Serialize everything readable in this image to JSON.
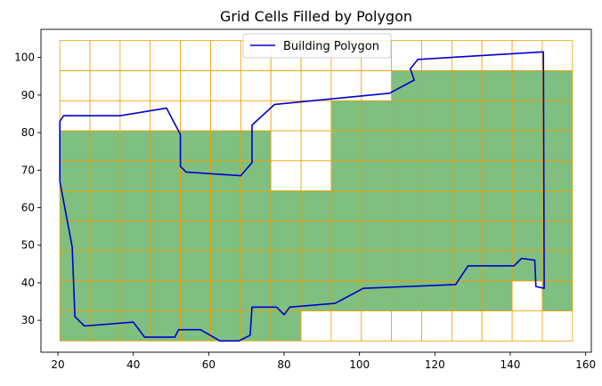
{
  "chart_data": {
    "type": "grid-polygon",
    "title": "Grid Cells Filled by Polygon",
    "xlim": [
      15.5,
      161.5
    ],
    "ylim": [
      21.5,
      107.5
    ],
    "xticks": [
      20,
      40,
      60,
      80,
      100,
      120,
      140,
      160
    ],
    "yticks": [
      30,
      40,
      50,
      60,
      70,
      80,
      90,
      100
    ],
    "grid_x_edges": [
      20.5,
      28.5,
      36.5,
      44.5,
      52.5,
      60.5,
      68.5,
      76.5,
      84.5,
      92.5,
      100.5,
      108.5,
      116.5,
      124.5,
      132.5,
      140.5,
      148.5,
      156.5
    ],
    "grid_y_edges": [
      24.5,
      32.5,
      40.5,
      48.5,
      56.5,
      64.5,
      72.5,
      80.5,
      88.5,
      96.5,
      104.5
    ],
    "filled_rows_bottom_to_top": [
      "11111111000000000",
      "11111111111111101",
      "11111111111111111",
      "11111111111111111",
      "11111111111111111",
      "11111110011111111",
      "11111110011111111",
      "00000000011111111",
      "00000000000111111",
      "00000000000000000"
    ],
    "colors": {
      "fill": "#7fbf7f",
      "cell_border": "#f0a000",
      "polygon": "#0000cc"
    },
    "legend": {
      "label": "Building Polygon",
      "placement": "top-center"
    },
    "series": [
      {
        "name": "Building Polygon",
        "x": [
          20.5,
          21.5,
          36.5,
          48.8,
          52.5,
          52.5,
          54,
          68.5,
          71.5,
          71.5,
          77.5,
          108,
          114.5,
          113.5,
          115.5,
          148.8,
          149,
          146.8,
          146.5,
          143,
          141,
          128.8,
          125.5,
          101,
          93.5,
          81.5,
          80,
          78,
          71.5,
          71,
          68,
          63,
          57.8,
          52,
          51,
          43,
          40,
          27,
          24.5,
          23.8,
          20.5,
          20.5,
          20.5
        ],
        "y": [
          83,
          84.5,
          84.5,
          86.5,
          79.5,
          71,
          69.5,
          68.5,
          72,
          82,
          87.5,
          90.5,
          94,
          97,
          99.5,
          101.5,
          38.5,
          39,
          46,
          46.5,
          44.5,
          44.5,
          39.5,
          38.5,
          34.5,
          33.5,
          31.5,
          33.5,
          33.5,
          26,
          24.5,
          24.5,
          27.5,
          27.5,
          25.5,
          25.5,
          29.5,
          28.5,
          31,
          49.5,
          67,
          78,
          83
        ]
      }
    ]
  }
}
